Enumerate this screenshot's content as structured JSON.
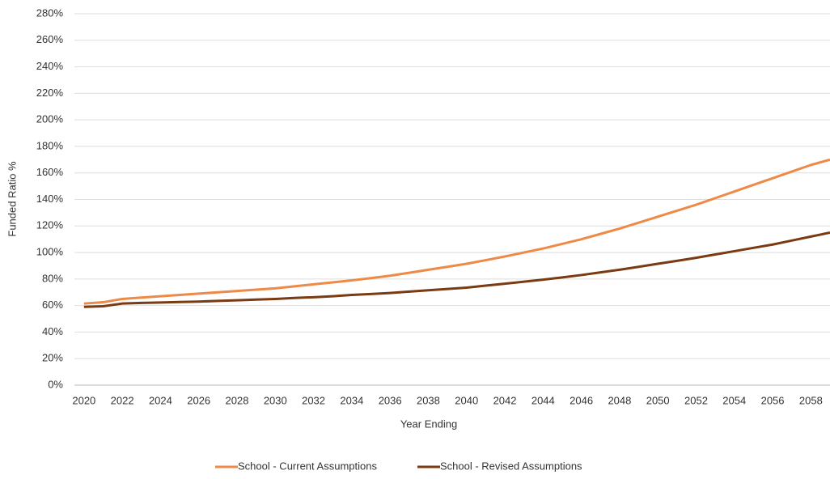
{
  "chart_data": {
    "type": "line",
    "xlabel": "Year Ending",
    "ylabel": "Funded Ratio %",
    "x": [
      2020,
      2021,
      2022,
      2023,
      2024,
      2025,
      2026,
      2027,
      2028,
      2029,
      2030,
      2031,
      2032,
      2033,
      2034,
      2035,
      2036,
      2037,
      2038,
      2039,
      2040,
      2041,
      2042,
      2043,
      2044,
      2045,
      2046,
      2047,
      2048,
      2049,
      2050,
      2051,
      2052,
      2053,
      2054,
      2055,
      2056,
      2057,
      2058,
      2059
    ],
    "series": [
      {
        "name": "School - Current Assumptions",
        "color": "#ee8a47",
        "values": [
          61.5,
          62.5,
          65,
          66,
          67,
          68,
          69,
          70,
          71,
          72,
          73,
          74.5,
          76,
          77.5,
          79,
          80.7,
          82.5,
          84.7,
          87,
          89.2,
          91.5,
          94.2,
          97,
          100,
          103,
          106.5,
          110,
          114,
          118,
          122.5,
          127,
          131.5,
          136,
          141,
          146,
          151,
          156,
          161,
          166,
          170
        ]
      },
      {
        "name": "School - Revised Assumptions",
        "color": "#7a3a12",
        "values": [
          59,
          59.5,
          61.5,
          62,
          62.3,
          62.7,
          63,
          63.5,
          64,
          64.5,
          65,
          65.7,
          66.3,
          67,
          68,
          68.7,
          69.5,
          70.5,
          71.5,
          72.5,
          73.5,
          75,
          76.5,
          78,
          79.5,
          81.2,
          83,
          85,
          87,
          89.2,
          91.5,
          93.7,
          96,
          98.5,
          101,
          103.5,
          106,
          109,
          112,
          115
        ]
      }
    ],
    "xlim": [
      2019.5,
      2059
    ],
    "xticks": [
      2020,
      2022,
      2024,
      2026,
      2028,
      2030,
      2032,
      2034,
      2036,
      2038,
      2040,
      2042,
      2044,
      2046,
      2048,
      2050,
      2052,
      2054,
      2056,
      2058
    ],
    "ylim": [
      0,
      280
    ],
    "yticks": [
      {
        "value": 0,
        "label": "0%"
      },
      {
        "value": 20,
        "label": "20%"
      },
      {
        "value": 40,
        "label": "40%"
      },
      {
        "value": 60,
        "label": "60%"
      },
      {
        "value": 80,
        "label": "80%"
      },
      {
        "value": 100,
        "label": "100%"
      },
      {
        "value": 120,
        "label": "120%"
      },
      {
        "value": 140,
        "label": "140%"
      },
      {
        "value": 160,
        "label": "160%"
      },
      {
        "value": 180,
        "label": "180%"
      },
      {
        "value": 200,
        "label": "200%"
      },
      {
        "value": 220,
        "label": "220%"
      },
      {
        "value": 240,
        "label": "240%"
      },
      {
        "value": 260,
        "label": "260%"
      },
      {
        "value": 280,
        "label": "280%"
      }
    ],
    "grid": true,
    "legend": "bottom"
  }
}
